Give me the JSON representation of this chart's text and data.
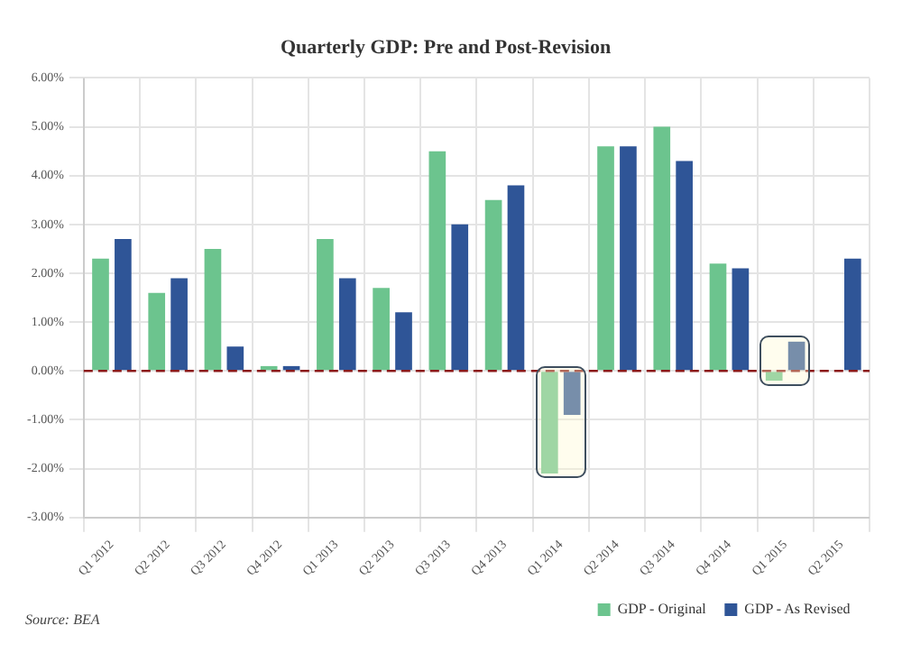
{
  "chart_data": {
    "type": "bar",
    "title": "Quarterly GDP: Pre and Post-Revision",
    "categories": [
      "Q1 2012",
      "Q2 2012",
      "Q3 2012",
      "Q4 2012",
      "Q1 2013",
      "Q2 2013",
      "Q3 2013",
      "Q4 2013",
      "Q1 2014",
      "Q2 2014",
      "Q3 2014",
      "Q4 2014",
      "Q1 2015",
      "Q2 2015"
    ],
    "series": [
      {
        "name": "GDP - Original",
        "color": "#6cc48e",
        "values": [
          2.3,
          1.6,
          2.5,
          0.1,
          2.7,
          1.7,
          4.5,
          3.5,
          -2.1,
          4.6,
          5.0,
          2.2,
          -0.2,
          null
        ]
      },
      {
        "name": "GDP - As Revised",
        "color": "#2f5597",
        "values": [
          2.7,
          1.9,
          0.5,
          0.1,
          1.9,
          1.2,
          3.0,
          3.8,
          -0.9,
          4.6,
          4.3,
          2.1,
          0.6,
          2.3
        ]
      }
    ],
    "ylim": [
      -3,
      6
    ],
    "yticks": [
      {
        "value": -3,
        "label": "-3.00%"
      },
      {
        "value": -2,
        "label": "-2.00%"
      },
      {
        "value": -1,
        "label": "-1.00%"
      },
      {
        "value": 0,
        "label": "0.00%"
      },
      {
        "value": 1,
        "label": "1.00%"
      },
      {
        "value": 2,
        "label": "2.00%"
      },
      {
        "value": 3,
        "label": "3.00%"
      },
      {
        "value": 4,
        "label": "4.00%"
      },
      {
        "value": 5,
        "label": "5.00%"
      },
      {
        "value": 6,
        "label": "6.00%"
      }
    ],
    "ref_lines": [
      {
        "axis": "y",
        "value": 0,
        "color": "#8b1a1a",
        "line_style": "dashed"
      }
    ],
    "annotations": [
      "Source: BEA"
    ],
    "grid": true,
    "legend": "bottom right"
  }
}
